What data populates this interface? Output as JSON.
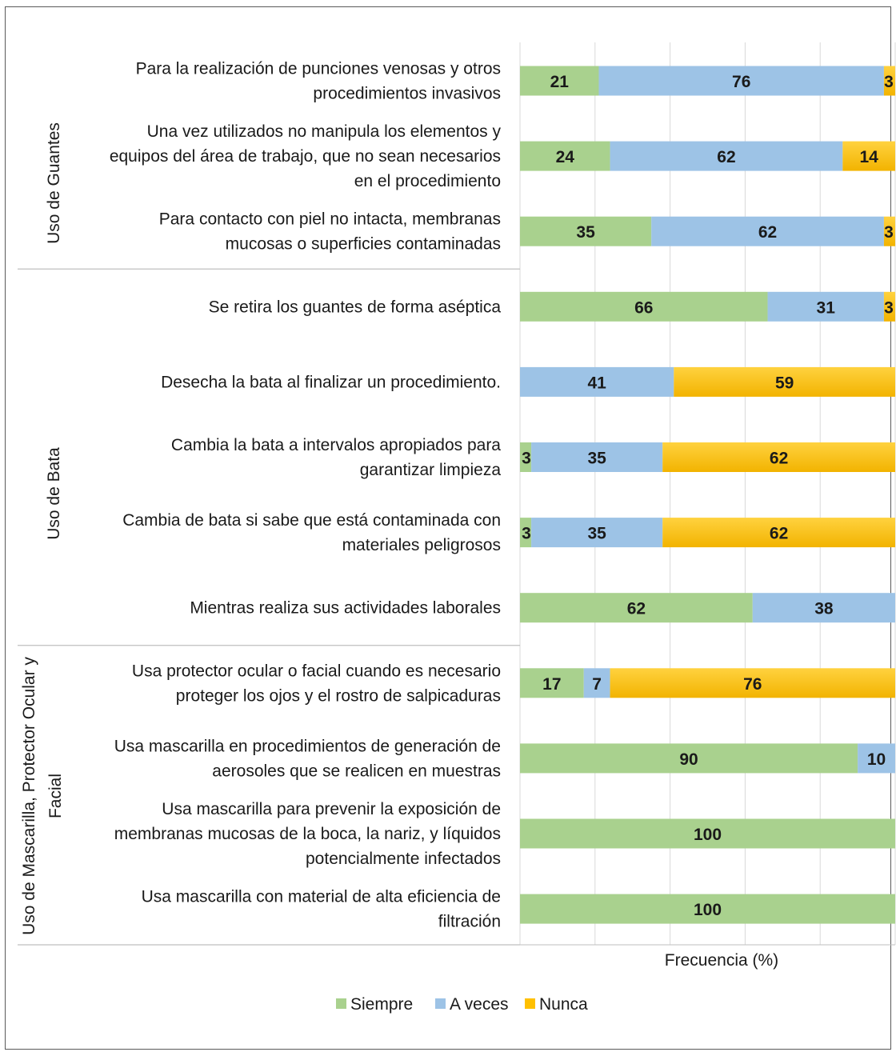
{
  "chart_data": {
    "type": "bar",
    "orientation": "horizontal",
    "stacked": true,
    "xlabel": "Frecuencia (%)",
    "xlim": [
      0,
      100
    ],
    "grid": true,
    "legend_position": "bottom",
    "groups": [
      {
        "label": "Uso de Guantes",
        "categories": [
          0,
          1,
          2
        ]
      },
      {
        "label": "Uso de Bata",
        "categories": [
          3,
          4,
          5,
          6,
          7
        ]
      },
      {
        "label": "Uso de Mascarilla, Protector Ocular y Facial",
        "categories": [
          8,
          9,
          10,
          11
        ]
      }
    ],
    "categories": [
      [
        "Para la realización de punciones venosas y otros",
        "procedimientos invasivos"
      ],
      [
        "Una vez utilizados no manipula los elementos y",
        "equipos del área de trabajo, que no sean necesarios",
        "en el procedimiento"
      ],
      [
        "Para contacto con piel no intacta, membranas",
        "mucosas o superficies contaminadas"
      ],
      [
        "Se retira los guantes de forma aséptica"
      ],
      [
        "Desecha la bata al finalizar un procedimiento."
      ],
      [
        "Cambia la bata a intervalos apropiados para",
        "garantizar limpieza"
      ],
      [
        "Cambia de bata si sabe que está contaminada con",
        "materiales peligrosos"
      ],
      [
        "Mientras realiza sus actividades laborales"
      ],
      [
        "Usa protector ocular o facial cuando es necesario",
        "proteger los ojos y el rostro de salpicaduras"
      ],
      [
        "Usa mascarilla en procedimientos de generación de",
        "aerosoles que se realicen en muestras"
      ],
      [
        "Usa mascarilla para prevenir la exposición de",
        "membranas mucosas de la boca, la nariz, y líquidos",
        "potencialmente infectados"
      ],
      [
        "Usa mascarilla con material de alta eficiencia de",
        "filtración"
      ]
    ],
    "series": [
      {
        "name": "Siempre",
        "color": "#a9d18e",
        "values": [
          21,
          24,
          35,
          66,
          0,
          3,
          3,
          62,
          17,
          90,
          100,
          100
        ]
      },
      {
        "name": "A veces",
        "color": "#9dc3e6",
        "values": [
          76,
          62,
          62,
          31,
          41,
          35,
          35,
          38,
          7,
          10,
          0,
          0
        ]
      },
      {
        "name": "Nunca",
        "color": "#ffc000",
        "values": [
          3,
          14,
          3,
          3,
          59,
          62,
          62,
          0,
          76,
          0,
          0,
          0
        ]
      }
    ]
  }
}
